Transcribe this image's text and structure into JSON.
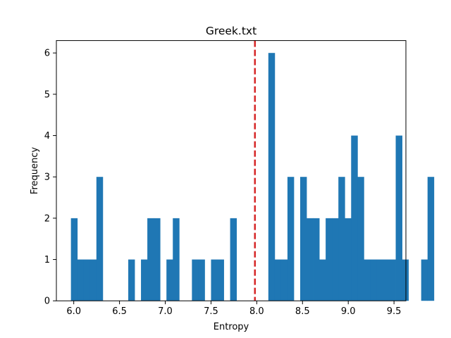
{
  "chart_data": {
    "type": "histogram",
    "title": "Greek.txt",
    "xlabel": "Entropy",
    "ylabel": "Frequency",
    "xlim": [
      5.81,
      9.63
    ],
    "ylim": [
      0,
      6.3
    ],
    "bin_start": 5.969,
    "bin_width": 0.0696,
    "counts": [
      2,
      1,
      1,
      1,
      3,
      0,
      0,
      0,
      0,
      1,
      0,
      1,
      2,
      2,
      0,
      1,
      2,
      0,
      0,
      1,
      1,
      0,
      1,
      1,
      0,
      2,
      0,
      0,
      0,
      0,
      0,
      6,
      1,
      1,
      3,
      0,
      3,
      2,
      2,
      1,
      2,
      2,
      3,
      2,
      4,
      3,
      1,
      1,
      1,
      1,
      1,
      4,
      1,
      0,
      0,
      1,
      3
    ],
    "mean_line": 7.98,
    "mean_line_color": "#d62728",
    "bar_color": "#1f77b4",
    "x_ticks": [
      6.0,
      6.5,
      7.0,
      7.5,
      8.0,
      8.5,
      9.0,
      9.5
    ],
    "x_tick_labels": [
      "6.0",
      "6.5",
      "7.0",
      "7.5",
      "8.0",
      "8.5",
      "9.0",
      "9.5"
    ],
    "y_ticks": [
      0,
      1,
      2,
      3,
      4,
      5,
      6
    ],
    "y_tick_labels": [
      "0",
      "1",
      "2",
      "3",
      "4",
      "5",
      "6"
    ],
    "grid": false,
    "legend": false
  }
}
